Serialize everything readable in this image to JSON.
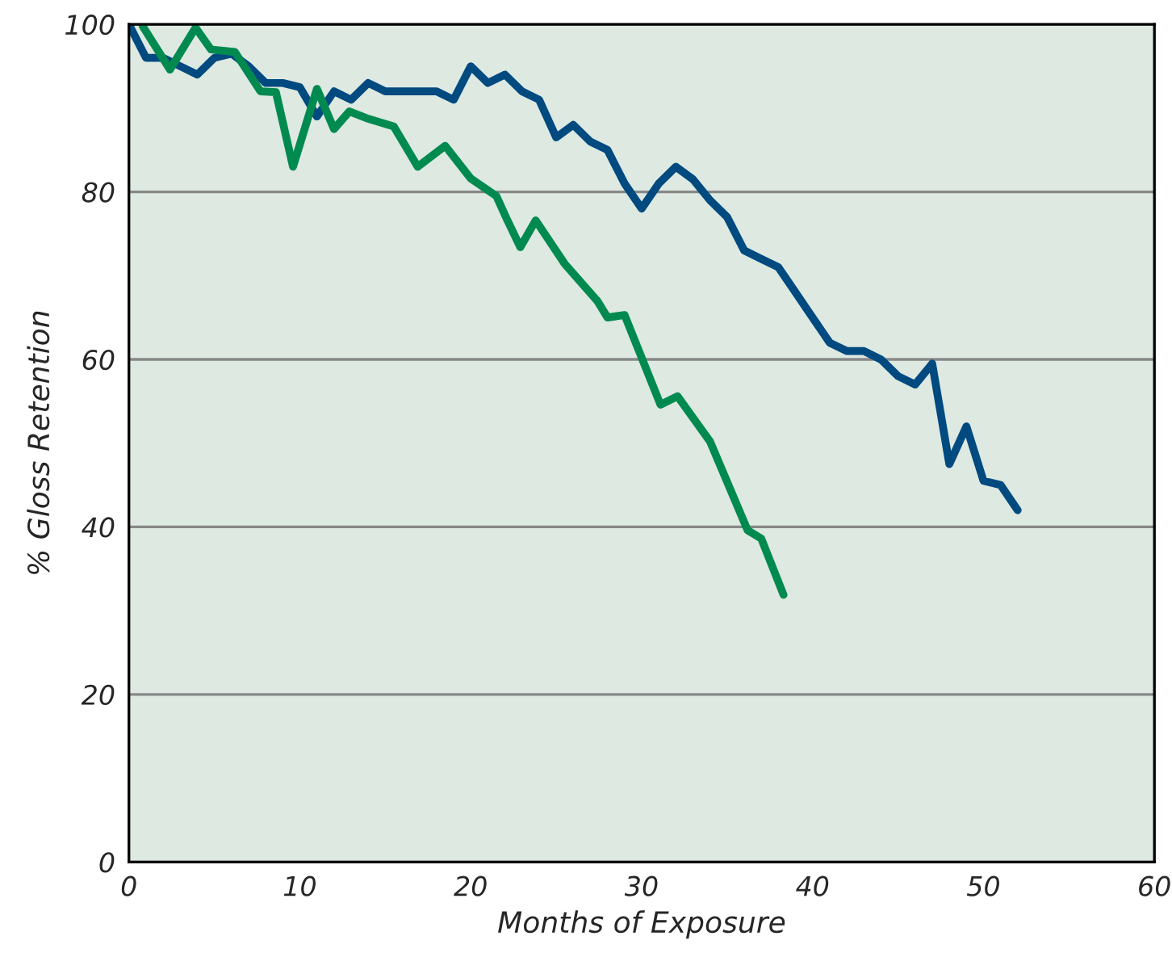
{
  "chart_data": {
    "type": "line",
    "xlabel": "Months of Exposure",
    "ylabel": "% Gloss Retention",
    "xlim": [
      0,
      60
    ],
    "ylim": [
      0,
      100
    ],
    "xticks": [
      0,
      10,
      20,
      30,
      40,
      50,
      60
    ],
    "yticks": [
      0,
      20,
      40,
      60,
      80,
      100
    ],
    "grid": "y",
    "legend": false,
    "series": [
      {
        "color": "#004a80",
        "x": [
          0,
          1,
          2,
          3,
          4,
          5,
          6,
          7,
          8,
          9,
          10,
          11,
          12,
          13,
          14,
          15,
          16,
          18,
          19,
          20,
          21,
          22,
          23,
          24,
          25,
          26,
          27,
          28,
          29,
          30,
          31,
          32,
          33,
          34,
          35,
          36,
          37,
          38,
          39,
          40,
          41,
          42,
          43,
          44,
          45,
          46,
          47,
          48,
          49,
          50,
          51,
          52
        ],
        "values": [
          100,
          96,
          96,
          95,
          94,
          96,
          96.5,
          95,
          93,
          93,
          92.5,
          89,
          92,
          91,
          93,
          92,
          92,
          92,
          91,
          95,
          93,
          94,
          92,
          91,
          86.5,
          88,
          86,
          85,
          81,
          78,
          81,
          83,
          81.5,
          79,
          77,
          73,
          72,
          71,
          68,
          65,
          62,
          61,
          61,
          60,
          58,
          57,
          59.5,
          47.5,
          52,
          45.5,
          45,
          42
        ]
      },
      {
        "color": "#008a50",
        "x": [
          0.8,
          2.4,
          3.9,
          4.8,
          6.2,
          7.7,
          8.6,
          9.6,
          11,
          12,
          12.9,
          13.9,
          15.5,
          16.9,
          18.5,
          20,
          21.5,
          22.1,
          22.9,
          23.8,
          25.5,
          27.4,
          28,
          29,
          31.1,
          32.1,
          34,
          36.2,
          37,
          38.3
        ],
        "values": [
          99.8,
          94.6,
          99.6,
          97,
          96.7,
          92,
          91.9,
          83,
          92.3,
          87.5,
          89.6,
          88.8,
          87.8,
          83,
          85.5,
          81.6,
          79.5,
          76.8,
          73.4,
          76.6,
          71.4,
          67,
          65,
          65.3,
          54.6,
          55.6,
          50.2,
          39.6,
          38.6,
          31.9
        ]
      }
    ]
  }
}
